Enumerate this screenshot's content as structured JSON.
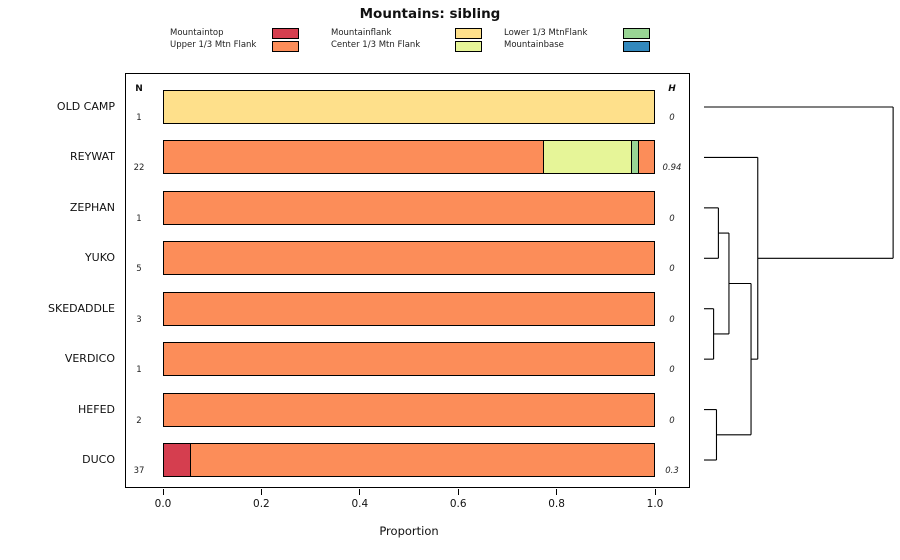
{
  "title": "Mountains: sibling",
  "legend": {
    "items": [
      {
        "label": "Mountaintop",
        "color": "#D53E4F"
      },
      {
        "label": "Upper 1/3 Mtn Flank",
        "color": "#FC8D59"
      },
      {
        "label": "Mountainflank",
        "color": "#FEE08B"
      },
      {
        "label": "Center 1/3 Mtn Flank",
        "color": "#E6F598"
      },
      {
        "label": "Lower 1/3 MtnFlank",
        "color": "#99D594"
      },
      {
        "label": "Mountainbase",
        "color": "#3288BD"
      }
    ]
  },
  "columns": {
    "n_header": "N",
    "h_header": "H"
  },
  "axes": {
    "x_ticks": [
      "0.0",
      "0.2",
      "0.4",
      "0.6",
      "0.8",
      "1.0"
    ],
    "x_label": "Proportion",
    "x_range": [
      0,
      1
    ]
  },
  "chart_data": {
    "type": "bar",
    "orientation": "horizontal",
    "stacked": true,
    "title": "Mountains: sibling",
    "xlabel": "Proportion",
    "xlim": [
      0,
      1
    ],
    "legend_position": "top",
    "categories": [
      "OLD CAMP",
      "REYWAT",
      "ZEPHAN",
      "YUKO",
      "SKEDADDLE",
      "VERDICO",
      "HEFED",
      "DUCO"
    ],
    "rows": [
      {
        "name": "OLD CAMP",
        "n": "1",
        "h": "0",
        "segments": [
          {
            "label": "Mountainflank",
            "value": 1.0
          }
        ]
      },
      {
        "name": "REYWAT",
        "n": "22",
        "h": "0.94",
        "segments": [
          {
            "label": "Upper 1/3 Mtn Flank",
            "value": 0.775
          },
          {
            "label": "Center 1/3 Mtn Flank",
            "value": 0.18
          },
          {
            "label": "Lower 1/3 MtnFlank",
            "value": 0.015
          },
          {
            "label": "Upper 1/3 Mtn Flank",
            "value": 0.03
          }
        ]
      },
      {
        "name": "ZEPHAN",
        "n": "1",
        "h": "0",
        "segments": [
          {
            "label": "Upper 1/3 Mtn Flank",
            "value": 1.0
          }
        ]
      },
      {
        "name": "YUKO",
        "n": "5",
        "h": "0",
        "segments": [
          {
            "label": "Upper 1/3 Mtn Flank",
            "value": 1.0
          }
        ]
      },
      {
        "name": "SKEDADDLE",
        "n": "3",
        "h": "0",
        "segments": [
          {
            "label": "Upper 1/3 Mtn Flank",
            "value": 1.0
          }
        ]
      },
      {
        "name": "VERDICO",
        "n": "1",
        "h": "0",
        "segments": [
          {
            "label": "Upper 1/3 Mtn Flank",
            "value": 1.0
          }
        ]
      },
      {
        "name": "HEFED",
        "n": "2",
        "h": "0",
        "segments": [
          {
            "label": "Upper 1/3 Mtn Flank",
            "value": 1.0
          }
        ]
      },
      {
        "name": "DUCO",
        "n": "37",
        "h": "0.3",
        "segments": [
          {
            "label": "Mountaintop",
            "value": 0.055
          },
          {
            "label": "Upper 1/3 Mtn Flank",
            "value": 0.945
          }
        ]
      }
    ],
    "dendrogram": {
      "merges": [
        {
          "a": "ZEPHAN",
          "b": "YUKO",
          "h": 0.075
        },
        {
          "a": "SKEDADDLE",
          "b": "VERDICO",
          "h": 0.05
        },
        {
          "a": "@0",
          "b": "@1",
          "h": 0.13
        },
        {
          "a": "HEFED",
          "b": "DUCO",
          "h": 0.065
        },
        {
          "a": "@2",
          "b": "@3",
          "h": 0.245
        },
        {
          "a": "REYWAT",
          "b": "@4",
          "h": 0.28
        },
        {
          "a": "OLD CAMP",
          "b": "@5",
          "h": 0.985
        }
      ]
    }
  }
}
